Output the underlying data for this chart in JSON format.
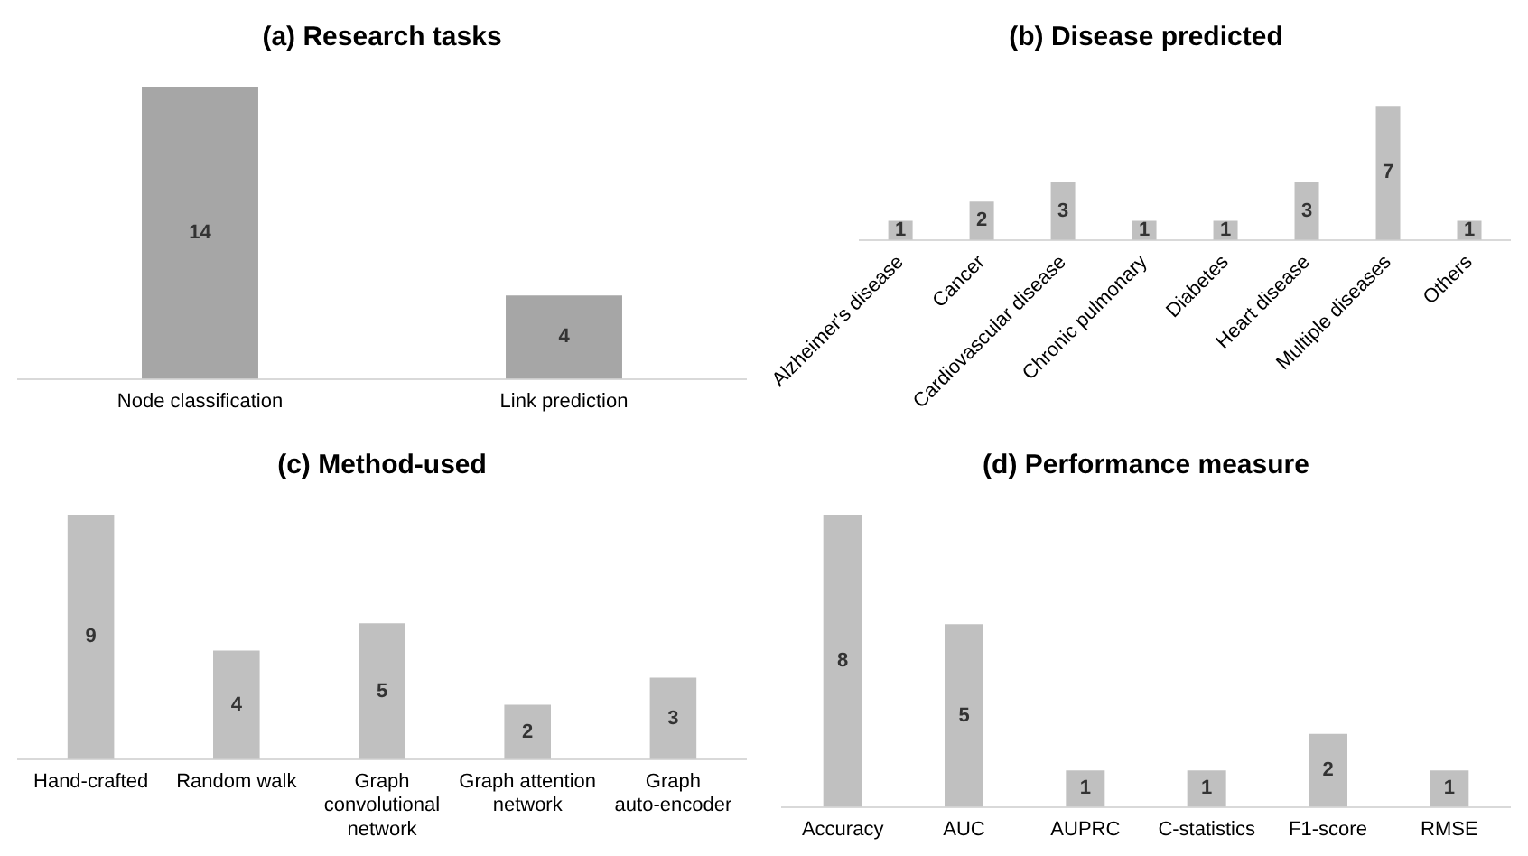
{
  "chart_data": [
    {
      "type": "bar",
      "title": "(a) Research tasks",
      "categories": [
        "Node classification",
        "Link prediction"
      ],
      "values": [
        14,
        4
      ],
      "color": "#a6a6a6",
      "data_labels": true,
      "grid": false,
      "legend": false,
      "tick_labels": "x"
    },
    {
      "type": "bar",
      "title": "(b) Disease predicted",
      "categories": [
        "Alzheimer's disease",
        "Cancer",
        "Cardiovascular disease",
        "Chronic pulmonary",
        "Diabetes",
        "Heart disease",
        "Multiple diseases",
        "Others"
      ],
      "values": [
        1,
        2,
        3,
        1,
        1,
        3,
        7,
        1
      ],
      "color": "#c0c0c0",
      "data_labels": true,
      "grid": false,
      "legend": false,
      "tick_labels": "x"
    },
    {
      "type": "bar",
      "title": "(c) Method-used",
      "categories": [
        "Hand-crafted",
        "Random walk",
        "Graph convolutional network",
        "Graph attention network",
        "Graph auto-encoder"
      ],
      "values": [
        9,
        4,
        5,
        2,
        3
      ],
      "color": "#c0c0c0",
      "data_labels": true,
      "grid": false,
      "legend": false,
      "tick_labels": "x"
    },
    {
      "type": "bar",
      "title": "(d) Performance measure",
      "categories": [
        "Accuracy",
        "AUC",
        "AUPRC",
        "C-statistics",
        "F1-score",
        "RMSE"
      ],
      "values": [
        8,
        5,
        1,
        1,
        2,
        1
      ],
      "color": "#c0c0c0",
      "data_labels": true,
      "grid": false,
      "legend": false,
      "tick_labels": "x"
    }
  ]
}
